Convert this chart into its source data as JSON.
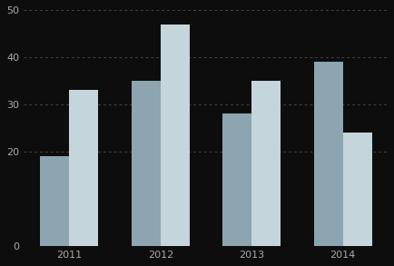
{
  "categories": [
    "2011",
    "2012",
    "2013",
    "2014"
  ],
  "series1": [
    19,
    35,
    28,
    39
  ],
  "series2": [
    33,
    47,
    35,
    24
  ],
  "color1": "#8ca5b0",
  "color2": "#c5d5dc",
  "background_color": "#0d0d0d",
  "text_color": "#aaaaaa",
  "grid_color": "#444444",
  "ylim": [
    0,
    50
  ],
  "yticks": [
    0,
    20,
    30,
    40,
    50
  ],
  "bar_width": 0.32,
  "figsize": [
    4.35,
    2.93
  ],
  "dpi": 100
}
